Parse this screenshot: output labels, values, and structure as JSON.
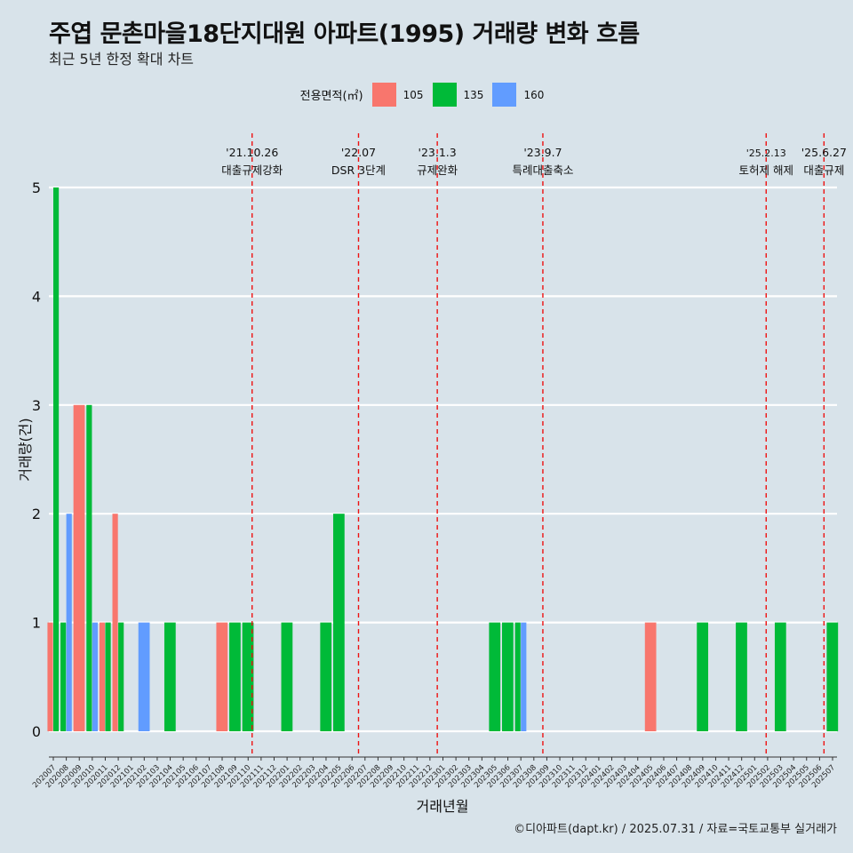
{
  "title": "주엽 문촌마을18단지대원 아파트(1995) 거래량 변화 흐름",
  "subtitle": "최근 5년 한정 확대 차트",
  "legend": {
    "title": "전용면적(㎡)",
    "items": [
      {
        "label": "105",
        "color": "#f8766d"
      },
      {
        "label": "135",
        "color": "#00ba38"
      },
      {
        "label": "160",
        "color": "#619cff"
      }
    ]
  },
  "caption": "©디아파트(dapt.kr) / 2025.07.31 / 자료=국토교통부 실거래가",
  "chart_data": {
    "type": "bar",
    "xlabel": "거래년월",
    "ylabel": "거래량(건)",
    "ylim": [
      0,
      5
    ],
    "yticks": [
      0,
      1,
      2,
      3,
      4,
      5
    ],
    "categories": [
      "202007",
      "202008",
      "202009",
      "202010",
      "202011",
      "202012",
      "202101",
      "202102",
      "202103",
      "202104",
      "202105",
      "202106",
      "202107",
      "202108",
      "202109",
      "202110",
      "202111",
      "202112",
      "202201",
      "202202",
      "202203",
      "202204",
      "202205",
      "202206",
      "202207",
      "202208",
      "202209",
      "202210",
      "202211",
      "202212",
      "202301",
      "202302",
      "202303",
      "202304",
      "202305",
      "202306",
      "202307",
      "202308",
      "202309",
      "202310",
      "202311",
      "202312",
      "202401",
      "202402",
      "202403",
      "202404",
      "202405",
      "202406",
      "202407",
      "202408",
      "202409",
      "202410",
      "202411",
      "202412",
      "202501",
      "202502",
      "202503",
      "202504",
      "202505",
      "202506",
      "202507"
    ],
    "series": [
      {
        "name": "105",
        "color": "#f8766d",
        "values": {
          "202007": 1,
          "202009": 3,
          "202011": 1,
          "202012": 2,
          "202108": 1,
          "202405": 1
        }
      },
      {
        "name": "135",
        "color": "#00ba38",
        "values": {
          "202007": 5,
          "202008": 1,
          "202010": 3,
          "202011": 1,
          "202012": 1,
          "202104": 1,
          "202109": 1,
          "202110": 1,
          "202201": 1,
          "202204": 1,
          "202205": 2,
          "202305": 1,
          "202306": 1,
          "202307": 1,
          "202409": 1,
          "202412": 1,
          "202503": 1,
          "202507": 1
        }
      },
      {
        "name": "160",
        "color": "#619cff",
        "values": {
          "202008": 2,
          "202010": 1,
          "202102": 1,
          "202307": 1
        }
      }
    ],
    "events": [
      {
        "date_label": "'21.10.26",
        "label": "대출규제강화",
        "month": "202110",
        "day": 26
      },
      {
        "date_label": "'22.07",
        "label": "DSR 3단계",
        "month": "202207",
        "day": 1
      },
      {
        "date_label": "'23.1.3",
        "label": "규제완화",
        "month": "202301",
        "day": 3
      },
      {
        "date_label": "'23.9.7",
        "label": "특례대출축소",
        "month": "202309",
        "day": 7
      },
      {
        "date_label": "'25.2.13",
        "label": "토허제 해제",
        "month": "202502",
        "day": 13
      },
      {
        "date_label": "'25.6.27",
        "label": "대출규제",
        "month": "202506",
        "day": 27
      }
    ]
  }
}
